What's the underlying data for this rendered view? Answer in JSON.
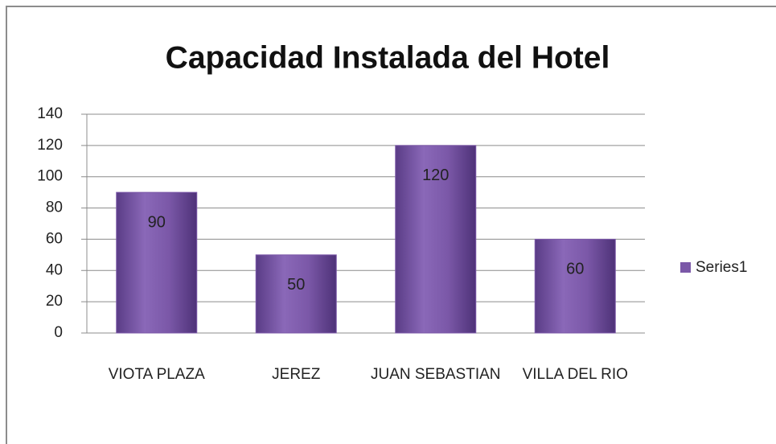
{
  "chart_data": {
    "type": "bar",
    "title": "Capacidad Instalada del Hotel",
    "categories": [
      "VIOTA PLAZA",
      "JEREZ",
      "JUAN SEBASTIAN",
      "VILLA DEL RIO"
    ],
    "series": [
      {
        "name": "Series1",
        "color": "#7b58a8",
        "values": [
          90,
          50,
          120,
          60
        ]
      }
    ],
    "ylim": [
      0,
      140
    ],
    "yticks": [
      0,
      20,
      40,
      60,
      80,
      100,
      120,
      140
    ],
    "grid": true,
    "legend": "right"
  }
}
